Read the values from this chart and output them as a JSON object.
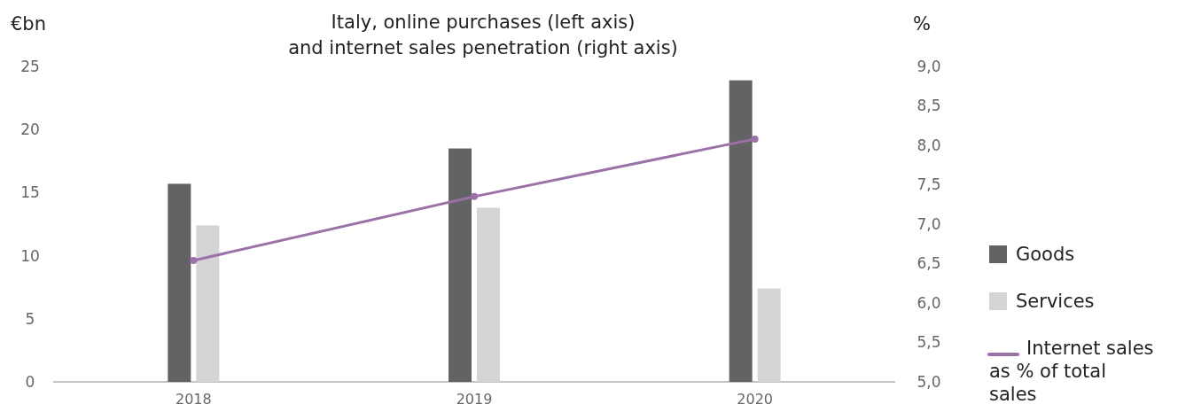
{
  "chart_data": {
    "type": "bar",
    "title": "Italy, online purchases (left axis)\nand internet sales penetration (right axis)",
    "ylabel": "€bn",
    "y2label": "%",
    "categories": [
      "2018",
      "2019",
      "2020"
    ],
    "series": [
      {
        "name": "Goods",
        "color": "#636366",
        "values": [
          15.7,
          18.5,
          23.9
        ]
      },
      {
        "name": "Services",
        "color": "#d4d4d6",
        "values": [
          12.4,
          13.8,
          7.4
        ]
      },
      {
        "name": "Internet sales as % of total sales",
        "type": "line",
        "axis": "y2",
        "color": "#9a72a8",
        "values": [
          6.54,
          7.35,
          8.08
        ]
      }
    ],
    "ylim": [
      0,
      25
    ],
    "yticks": [
      0,
      5,
      10,
      15,
      20,
      25
    ],
    "y2lim": [
      5,
      9
    ],
    "y2ticks": [
      {
        "value": 5,
        "label": "5,0"
      },
      {
        "value": 5.5,
        "label": "5,5"
      },
      {
        "value": 6,
        "label": "6,0"
      },
      {
        "value": 6.5,
        "label": "6,5"
      },
      {
        "value": 7,
        "label": "7,0"
      },
      {
        "value": 7.5,
        "label": "7,5"
      },
      {
        "value": 8,
        "label": "8,0"
      },
      {
        "value": 8.5,
        "label": "8,5"
      },
      {
        "value": 9,
        "label": "9,0"
      }
    ],
    "marker": "circle",
    "grid": false,
    "legend": "right"
  }
}
